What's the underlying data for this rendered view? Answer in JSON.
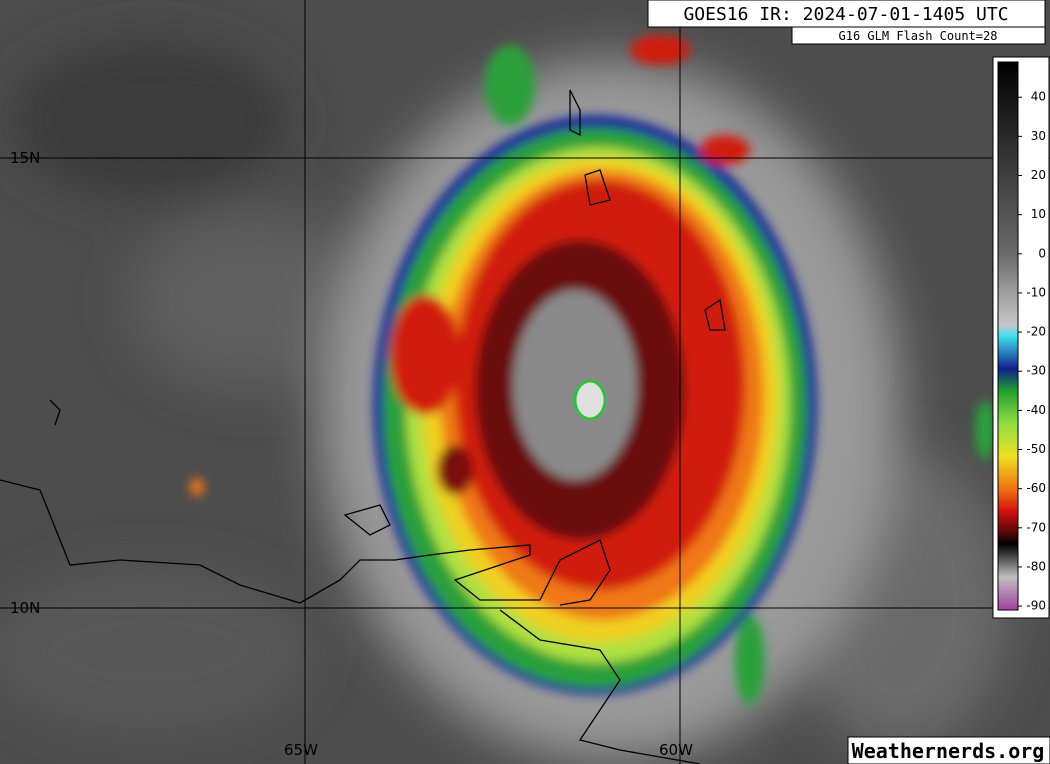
{
  "header": {
    "title": "GOES16 IR: 2024-07-01-1405 UTC",
    "flash_count": "G16 GLM Flash Count=28"
  },
  "grid": {
    "latitudes": [
      "15N",
      "10N"
    ],
    "longitudes": [
      "65W",
      "60W"
    ]
  },
  "colorbar": {
    "range": [
      49,
      -91
    ],
    "ticks": [
      40,
      30,
      20,
      10,
      0,
      -10,
      -20,
      -30,
      -40,
      -50,
      -60,
      -70,
      -80,
      -90
    ]
  },
  "watermark": "Weathernerds.org"
}
